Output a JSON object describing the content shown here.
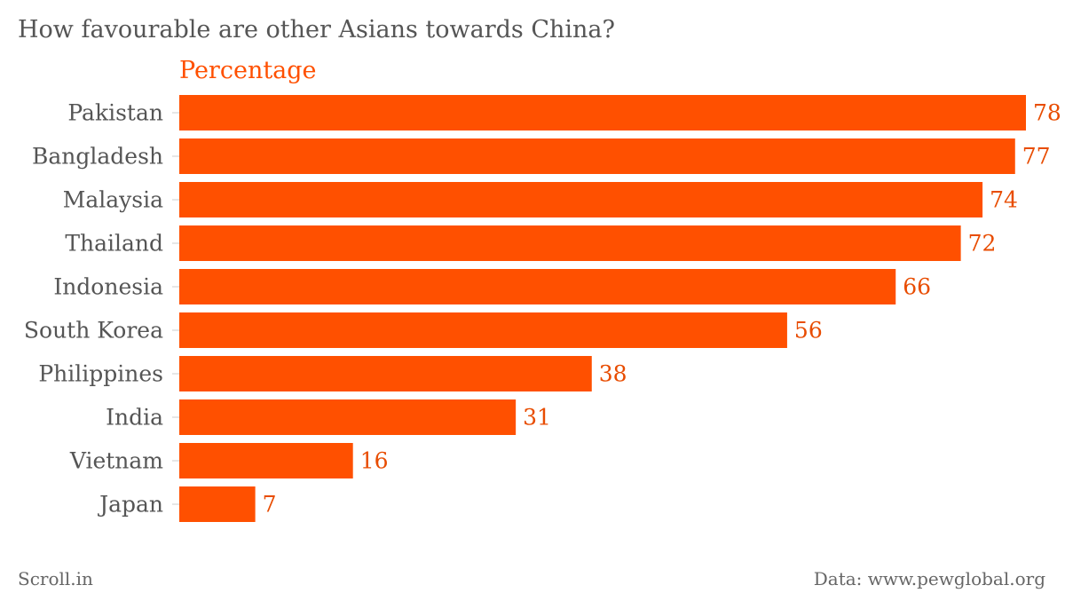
{
  "title": "How favourable are other Asians towards China?",
  "series_label": "Percentage",
  "footer": {
    "source_left": "Scroll.in",
    "source_right": "Data: www.pewglobal.org"
  },
  "colors": {
    "bar": "#ff5000",
    "value_label": "#e84c00",
    "category_label": "#555555",
    "tick": "#cccccc"
  },
  "chart_data": {
    "type": "bar",
    "orientation": "horizontal",
    "categories": [
      "Pakistan",
      "Bangladesh",
      "Malaysia",
      "Thailand",
      "Indonesia",
      "South Korea",
      "Philippines",
      "India",
      "Vietnam",
      "Japan"
    ],
    "values": [
      78,
      77,
      74,
      72,
      66,
      56,
      38,
      31,
      16,
      7
    ],
    "title": "How favourable are other Asians towards China?",
    "series_name": "Percentage",
    "xlim": [
      0,
      78
    ],
    "grid": false,
    "data_labels": true
  }
}
